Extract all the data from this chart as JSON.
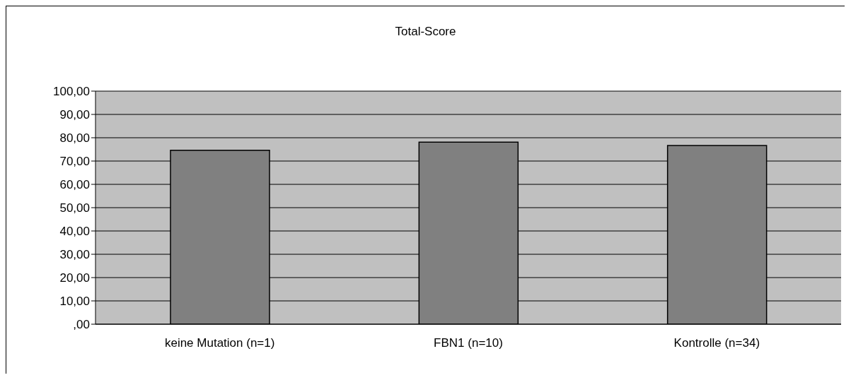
{
  "chart_data": {
    "type": "bar",
    "title": "Total-Score",
    "categories": [
      "keine Mutation (n=1)",
      "FBN1 (n=10)",
      "Kontrolle (n=34)"
    ],
    "values": [
      74.6,
      78.1,
      76.7
    ],
    "color": "#808080",
    "ylim": [
      0,
      100
    ],
    "yticks": [
      {
        "value": 0,
        "label": ",00"
      },
      {
        "value": 10,
        "label": "10,00"
      },
      {
        "value": 20,
        "label": "20,00"
      },
      {
        "value": 30,
        "label": "30,00"
      },
      {
        "value": 40,
        "label": "40,00"
      },
      {
        "value": 50,
        "label": "50,00"
      },
      {
        "value": 60,
        "label": "60,00"
      },
      {
        "value": 70,
        "label": "70,00"
      },
      {
        "value": 80,
        "label": "80,00"
      },
      {
        "value": 90,
        "label": "90,00"
      },
      {
        "value": 100,
        "label": "100,00"
      }
    ],
    "grid": "y"
  }
}
